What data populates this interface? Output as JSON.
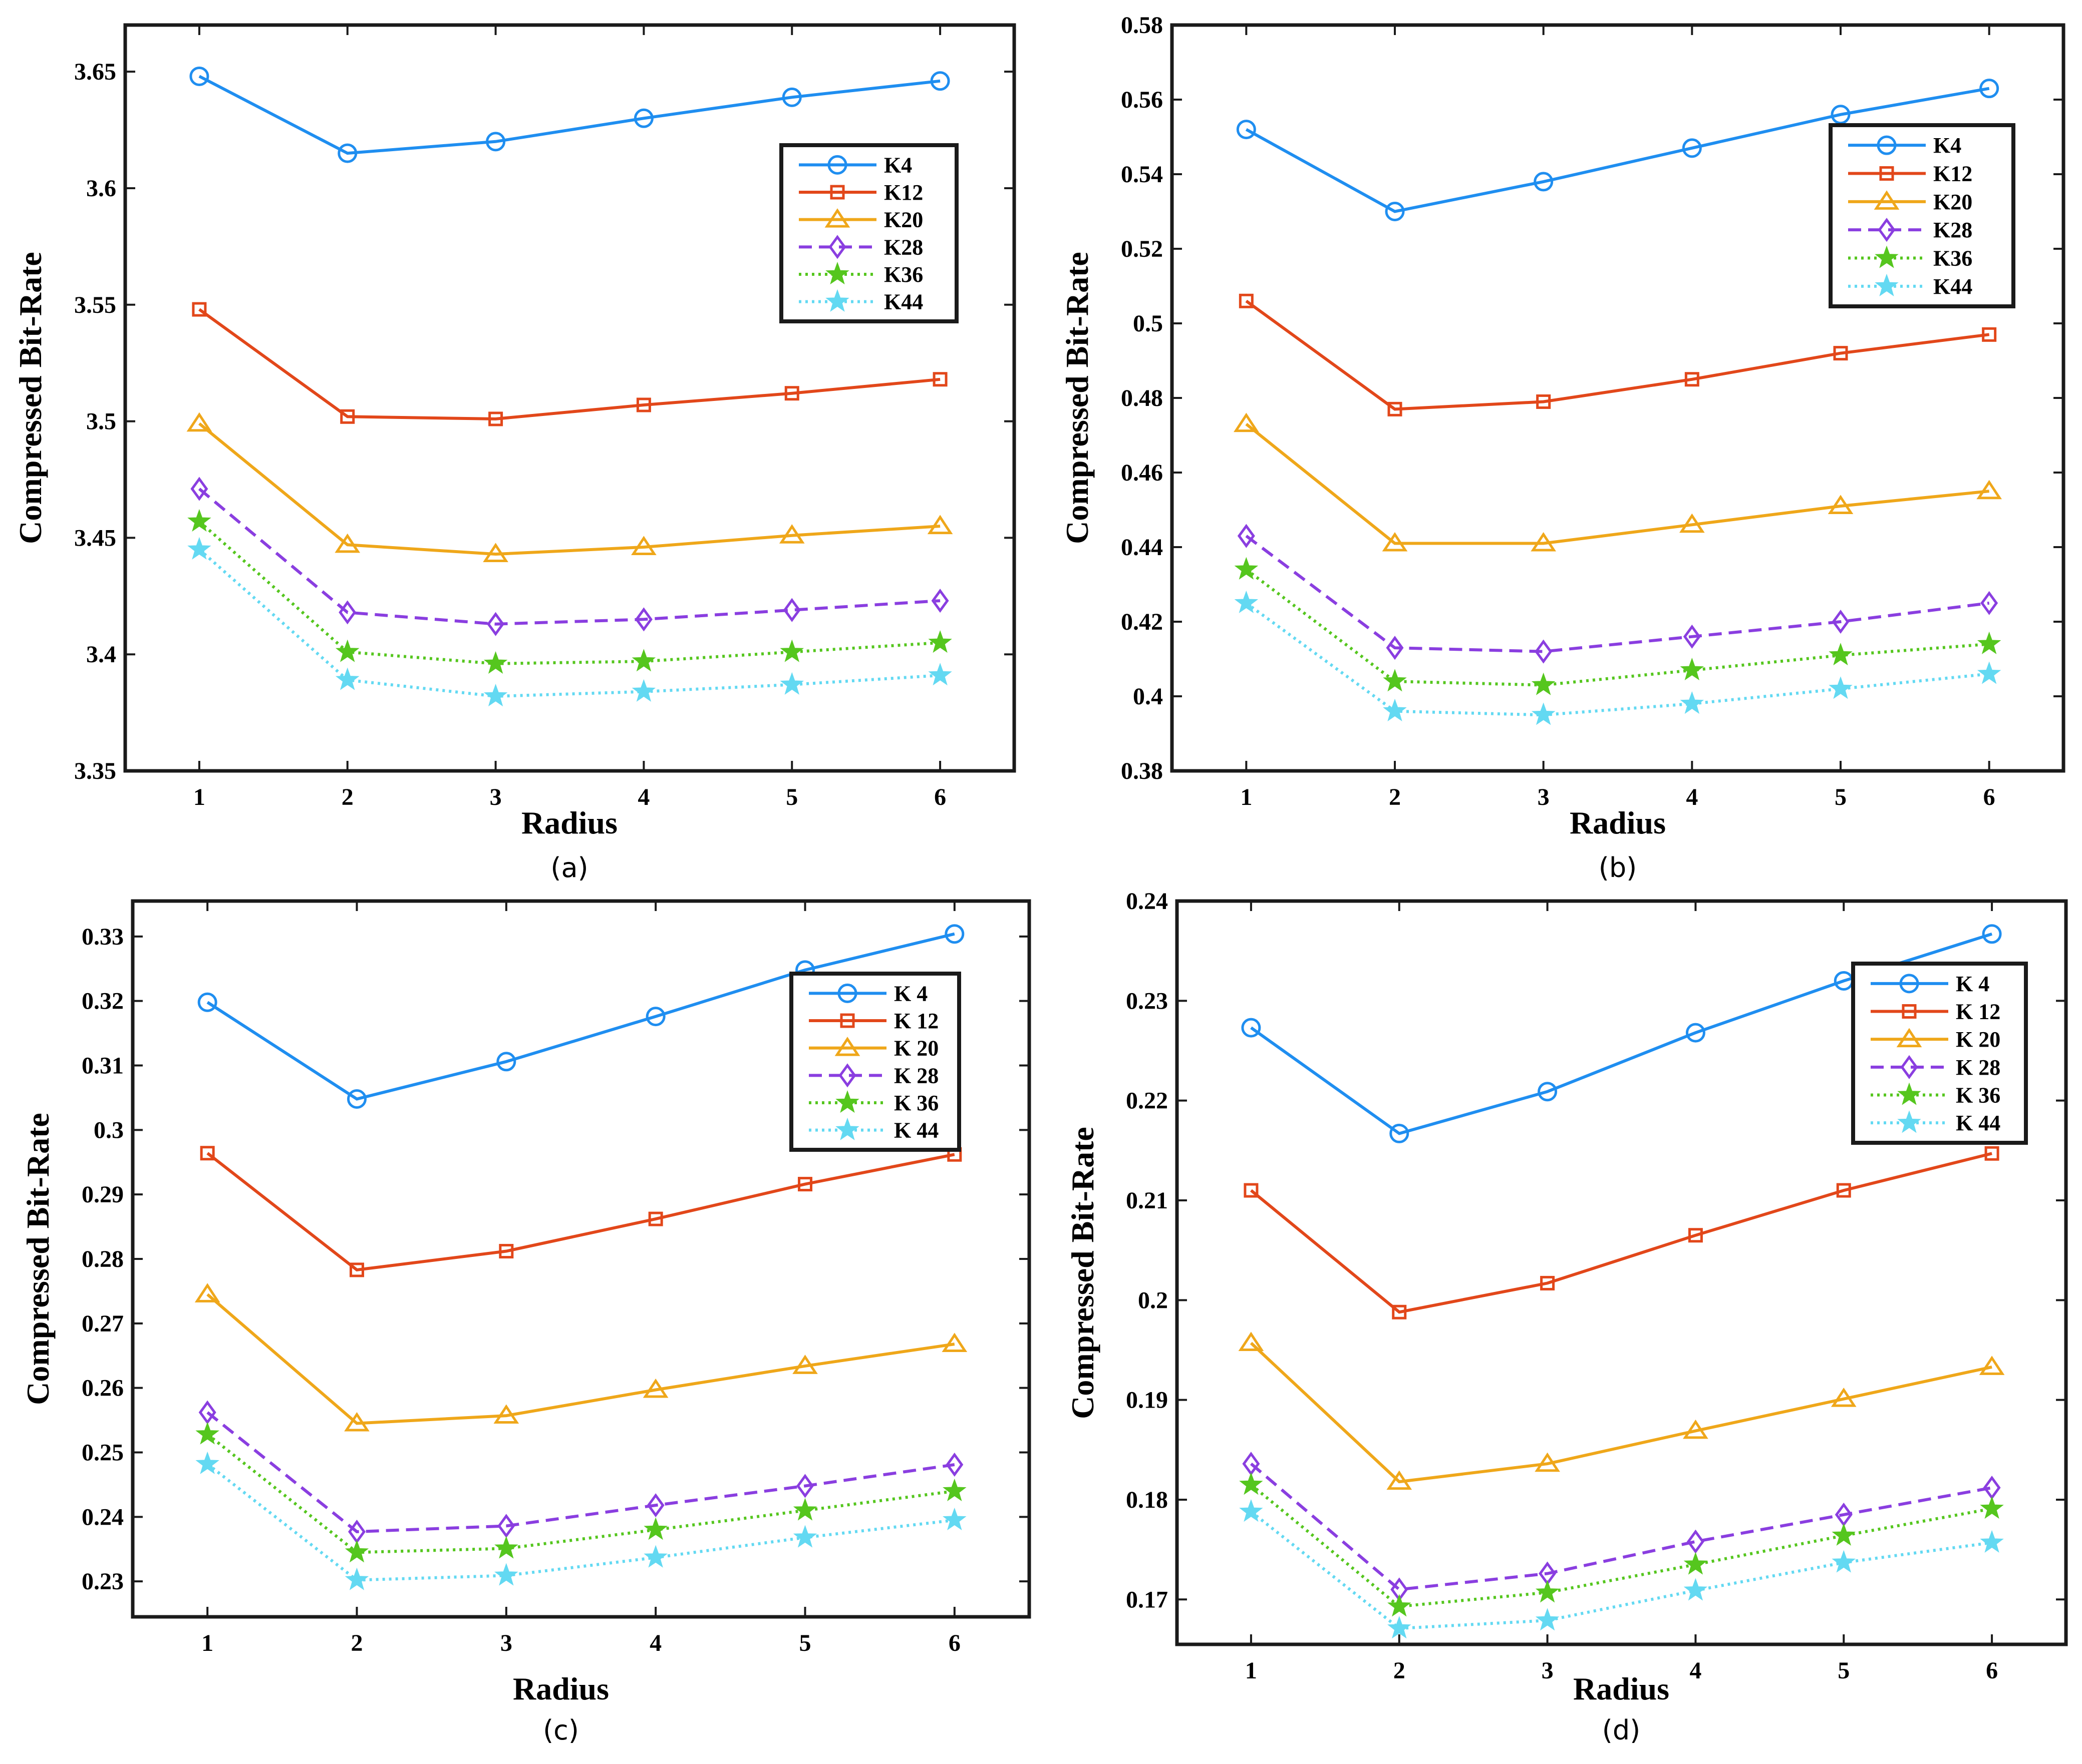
{
  "figure": {
    "colors": {
      "K4": "#1f8ef0",
      "K12": "#e2471a",
      "K20": "#efa71a",
      "K28": "#8a3ee0",
      "K36": "#55c61e",
      "K44": "#63d9f2"
    }
  },
  "chart_data": [
    {
      "type": "line",
      "panel_label": "(a)",
      "xlabel": "Radius",
      "ylabel": "Compressed Bit-Rate",
      "x": [
        1,
        2,
        3,
        4,
        5,
        6
      ],
      "xlim": [
        0.5,
        6.5
      ],
      "ylim": [
        3.35,
        3.67
      ],
      "yticks": [
        3.35,
        3.4,
        3.45,
        3.5,
        3.55,
        3.6,
        3.65
      ],
      "ytick_labels": [
        "3.35",
        "3.4",
        "3.45",
        "3.5",
        "3.55",
        "3.6",
        "3.65"
      ],
      "legend_position": "upper-right",
      "series": [
        {
          "name": "K4",
          "marker": "circle",
          "dash": "solid",
          "values": [
            3.648,
            3.615,
            3.62,
            3.63,
            3.639,
            3.646
          ]
        },
        {
          "name": "K12",
          "marker": "square",
          "dash": "solid",
          "values": [
            3.548,
            3.502,
            3.501,
            3.507,
            3.512,
            3.518
          ]
        },
        {
          "name": "K20",
          "marker": "triangle",
          "dash": "solid",
          "values": [
            3.499,
            3.447,
            3.443,
            3.446,
            3.451,
            3.455
          ]
        },
        {
          "name": "K28",
          "marker": "diamond",
          "dash": "dashed",
          "values": [
            3.471,
            3.418,
            3.413,
            3.415,
            3.419,
            3.423
          ]
        },
        {
          "name": "K36",
          "marker": "star",
          "dash": "dotted",
          "values": [
            3.457,
            3.401,
            3.396,
            3.397,
            3.401,
            3.405
          ]
        },
        {
          "name": "K44",
          "marker": "star",
          "dash": "dotted",
          "values": [
            3.445,
            3.389,
            3.382,
            3.384,
            3.387,
            3.391
          ]
        }
      ]
    },
    {
      "type": "line",
      "panel_label": "(b)",
      "xlabel": "Radius",
      "ylabel": "Compressed Bit-Rate",
      "x": [
        1,
        2,
        3,
        4,
        5,
        6
      ],
      "xlim": [
        0.5,
        6.5
      ],
      "ylim": [
        0.38,
        0.58
      ],
      "yticks": [
        0.38,
        0.4,
        0.42,
        0.44,
        0.46,
        0.48,
        0.5,
        0.52,
        0.54,
        0.56,
        0.58
      ],
      "ytick_labels": [
        "0.38",
        "0.4",
        "0.42",
        "0.44",
        "0.46",
        "0.48",
        "0.5",
        "0.52",
        "0.54",
        "0.56",
        "0.58"
      ],
      "legend_position": "upper-right",
      "series": [
        {
          "name": "K4",
          "marker": "circle",
          "dash": "solid",
          "values": [
            0.552,
            0.53,
            0.538,
            0.547,
            0.556,
            0.563
          ]
        },
        {
          "name": "K12",
          "marker": "square",
          "dash": "solid",
          "values": [
            0.506,
            0.477,
            0.479,
            0.485,
            0.492,
            0.497
          ]
        },
        {
          "name": "K20",
          "marker": "triangle",
          "dash": "solid",
          "values": [
            0.473,
            0.441,
            0.441,
            0.446,
            0.451,
            0.455
          ]
        },
        {
          "name": "K28",
          "marker": "diamond",
          "dash": "dashed",
          "values": [
            0.443,
            0.413,
            0.412,
            0.416,
            0.42,
            0.425
          ]
        },
        {
          "name": "K36",
          "marker": "star",
          "dash": "dotted",
          "values": [
            0.434,
            0.404,
            0.403,
            0.407,
            0.411,
            0.414
          ]
        },
        {
          "name": "K44",
          "marker": "star",
          "dash": "dotted",
          "values": [
            0.425,
            0.396,
            0.395,
            0.398,
            0.402,
            0.406
          ]
        }
      ]
    },
    {
      "type": "line",
      "panel_label": "(c)",
      "xlabel": "Radius",
      "ylabel": "Compressed Bit-Rate",
      "x": [
        1,
        2,
        3,
        4,
        5,
        6
      ],
      "xlim": [
        0.5,
        6.5
      ],
      "ylim": [
        0.2245,
        0.3355
      ],
      "yticks": [
        0.23,
        0.24,
        0.25,
        0.26,
        0.27,
        0.28,
        0.29,
        0.3,
        0.31,
        0.32,
        0.33
      ],
      "ytick_labels": [
        "0.23",
        "0.24",
        "0.25",
        "0.26",
        "0.27",
        "0.28",
        "0.29",
        "0.3",
        "0.31",
        "0.32",
        "0.33"
      ],
      "legend_position": "upper-right",
      "series": [
        {
          "name": "K 4",
          "marker": "circle",
          "dash": "solid",
          "values": [
            0.3198,
            0.3048,
            0.3106,
            0.3176,
            0.3248,
            0.3304
          ]
        },
        {
          "name": "K 12",
          "marker": "square",
          "dash": "solid",
          "values": [
            0.2964,
            0.2783,
            0.2812,
            0.2862,
            0.2916,
            0.2962
          ]
        },
        {
          "name": "K 20",
          "marker": "triangle",
          "dash": "solid",
          "values": [
            0.2745,
            0.2545,
            0.2557,
            0.2597,
            0.2634,
            0.2668
          ]
        },
        {
          "name": "K 28",
          "marker": "diamond",
          "dash": "dashed",
          "values": [
            0.2562,
            0.2377,
            0.2386,
            0.2418,
            0.2448,
            0.2481
          ]
        },
        {
          "name": "K 36",
          "marker": "star",
          "dash": "dotted",
          "values": [
            0.2528,
            0.2345,
            0.2351,
            0.238,
            0.241,
            0.244
          ]
        },
        {
          "name": "K 44",
          "marker": "star",
          "dash": "dotted",
          "values": [
            0.2482,
            0.2302,
            0.2309,
            0.2337,
            0.2368,
            0.2395
          ]
        }
      ]
    },
    {
      "type": "line",
      "panel_label": "(d)",
      "xlabel": "Radius",
      "ylabel": "Compressed Bit-Rate",
      "x": [
        1,
        2,
        3,
        4,
        5,
        6
      ],
      "xlim": [
        0.5,
        6.5
      ],
      "ylim": [
        0.1655,
        0.24
      ],
      "yticks": [
        0.17,
        0.18,
        0.19,
        0.2,
        0.21,
        0.22,
        0.23,
        0.24
      ],
      "ytick_labels": [
        "0.17",
        "0.18",
        "0.19",
        "0.2",
        "0.21",
        "0.22",
        "0.23",
        "0.24"
      ],
      "legend_position": "upper-right",
      "series": [
        {
          "name": "K 4",
          "marker": "circle",
          "dash": "solid",
          "values": [
            0.2273,
            0.2167,
            0.2209,
            0.2268,
            0.232,
            0.2367
          ]
        },
        {
          "name": "K 12",
          "marker": "square",
          "dash": "solid",
          "values": [
            0.211,
            0.1988,
            0.2017,
            0.2065,
            0.211,
            0.2147
          ]
        },
        {
          "name": "K 20",
          "marker": "triangle",
          "dash": "solid",
          "values": [
            0.1957,
            0.1818,
            0.1836,
            0.1869,
            0.1901,
            0.1933
          ]
        },
        {
          "name": "K 28",
          "marker": "diamond",
          "dash": "dashed",
          "values": [
            0.1836,
            0.171,
            0.1726,
            0.1758,
            0.1785,
            0.1812
          ]
        },
        {
          "name": "K 36",
          "marker": "star",
          "dash": "dotted",
          "values": [
            0.1815,
            0.1693,
            0.1707,
            0.1735,
            0.1764,
            0.1791
          ]
        },
        {
          "name": "K 44",
          "marker": "star",
          "dash": "dotted",
          "values": [
            0.1788,
            0.1671,
            0.1679,
            0.1709,
            0.1737,
            0.1757
          ]
        }
      ]
    }
  ]
}
